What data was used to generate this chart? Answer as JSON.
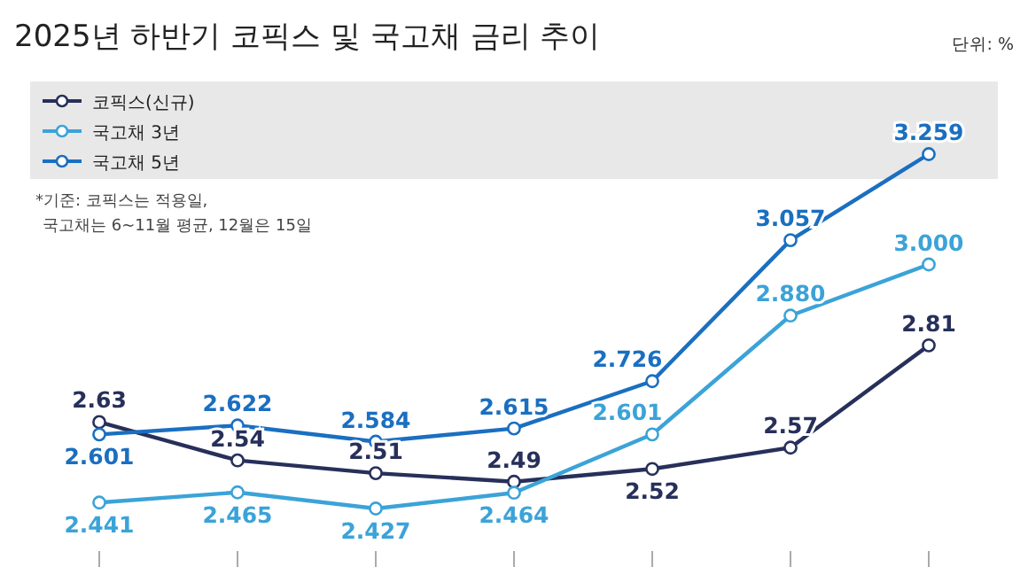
{
  "chart_data": {
    "type": "line",
    "title": "2025년 하반기 코픽스 및 국고채 금리 추이",
    "annotations": [
      "단위: %",
      "*기준: 코픽스는 적용일,\n국고채는 6~11월 평균, 12월은 15일"
    ],
    "categories": [
      null,
      null,
      null,
      null,
      null,
      null,
      null
    ],
    "series": [
      {
        "name": "코픽스(신규)",
        "color": "#27305a",
        "values": [
          2.63,
          2.54,
          2.51,
          2.49,
          2.52,
          2.57,
          2.81
        ],
        "value_labels": [
          "2.63",
          "2.54",
          "2.51",
          "2.49",
          "2.52",
          "2.57",
          "2.81"
        ]
      },
      {
        "name": "국고채 3년",
        "color": "#3ba3d8",
        "values": [
          2.441,
          2.465,
          2.427,
          2.464,
          2.601,
          2.88,
          3.0
        ],
        "value_labels": [
          "2.441",
          "2.465",
          "2.427",
          "2.464",
          "2.601",
          "2.880",
          "3.000"
        ]
      },
      {
        "name": "국고채 5년",
        "color": "#1a6fc0",
        "values": [
          2.601,
          2.622,
          2.584,
          2.615,
          2.726,
          3.057,
          3.259
        ],
        "value_labels": [
          "2.601",
          "2.622",
          "2.584",
          "2.615",
          "2.726",
          "3.057",
          "3.259"
        ]
      }
    ],
    "marker": "circle",
    "legend": "top left"
  }
}
